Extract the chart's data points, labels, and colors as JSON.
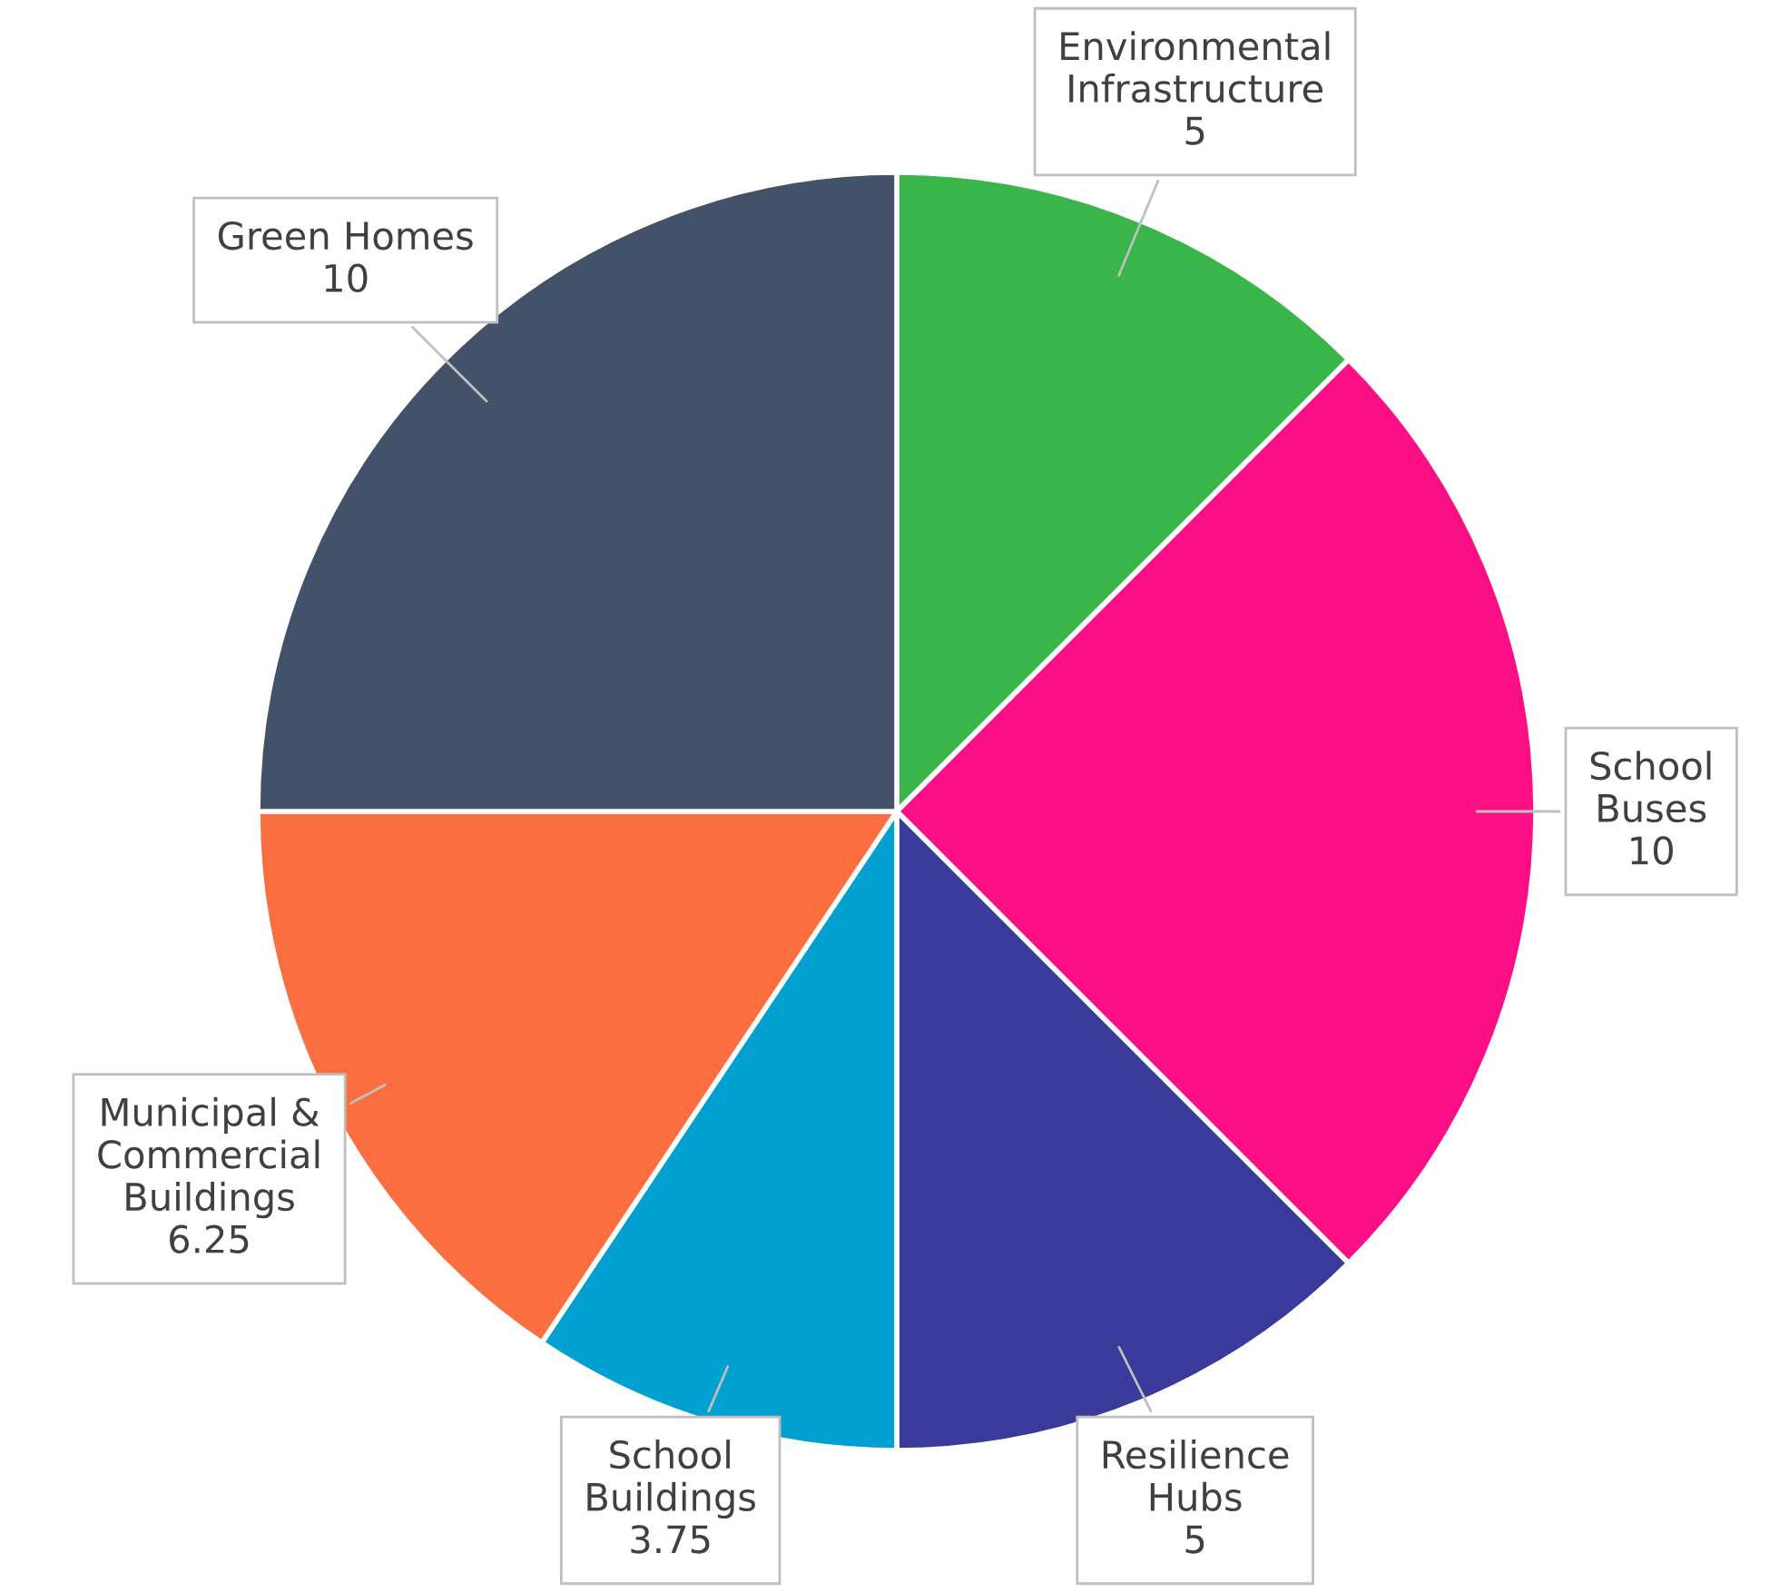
{
  "chart_data": {
    "type": "pie",
    "categories": [
      "Environmental Infrastructure",
      "School Buses",
      "Resilience Hubs",
      "School Buildings",
      "Municipal & Commercial Buildings",
      "Green Homes"
    ],
    "values": [
      5,
      10,
      5,
      3.75,
      6.25,
      10
    ],
    "colors": [
      "#39b54a",
      "#fc0f84",
      "#3a3a9a",
      "#00a0d1",
      "#fa6e3f",
      "#435268"
    ],
    "data_labels": true,
    "legend": false
  }
}
